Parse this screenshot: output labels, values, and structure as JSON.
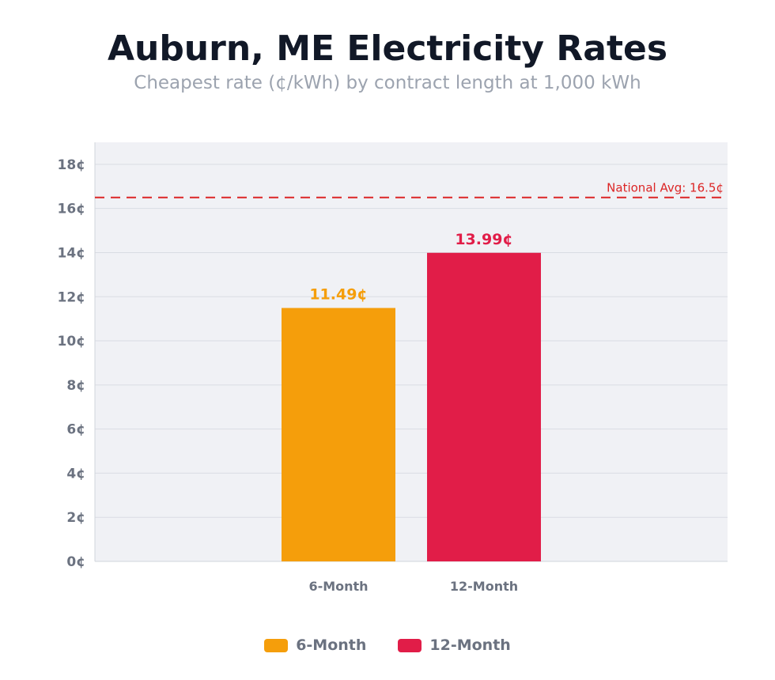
{
  "title": "Auburn, ME Electricity Rates",
  "subtitle": "Cheapest rate (¢/kWh) by contract length at 1,000 kWh",
  "chart_data": {
    "type": "bar",
    "categories": [
      "6-Month",
      "12-Month"
    ],
    "values": [
      11.49,
      13.99
    ],
    "data_labels": [
      "11.49¢",
      "13.99¢"
    ],
    "colors": [
      "#f59e0b",
      "#e11d48"
    ],
    "ylim": [
      0,
      19
    ],
    "yticks": [
      0,
      2,
      4,
      6,
      8,
      10,
      12,
      14,
      16,
      18
    ],
    "ytick_labels": [
      "0¢",
      "2¢",
      "4¢",
      "6¢",
      "8¢",
      "10¢",
      "12¢",
      "14¢",
      "16¢",
      "18¢"
    ],
    "grid": true,
    "reference_line": {
      "value": 16.5,
      "label": "National Avg: 16.5¢",
      "color": "#dc2626",
      "style": "dashed"
    },
    "legend": {
      "placement": "bottom",
      "entries": [
        "6-Month",
        "12-Month"
      ]
    },
    "plot_background": "#f0f1f5"
  }
}
